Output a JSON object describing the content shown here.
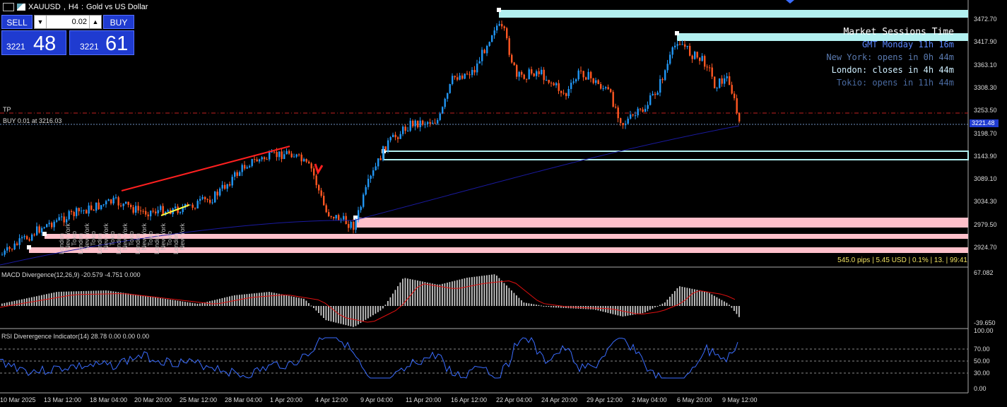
{
  "header": {
    "symbol": "XAUUSD",
    "timeframe": "H4",
    "description": "Gold vs US Dollar"
  },
  "trade_panel": {
    "sell_label": "SELL",
    "buy_label": "BUY",
    "lot": "0.02",
    "sell_small": "3221",
    "sell_big": "48",
    "buy_small": "3221",
    "buy_big": "61"
  },
  "sessions": {
    "title": "Market Sessions Time",
    "gmt": "GMT Monday 11h 16m",
    "newyork": "New York: opens in 0h 44m",
    "london": "London: closes in 4h 44m",
    "tokio": "Tokio: opens in 11h 44m",
    "colors": {
      "title": "#ffffff",
      "gmt": "#5a86ff",
      "newyork": "#5a7ab0",
      "london": "#cfefff",
      "tokio": "#4a6aa0"
    }
  },
  "labels": {
    "tp": "TP",
    "position": "BUY 0.01 at 3216.03",
    "current_price": "3221.48"
  },
  "bar_info": "545.0 pips | 5.45 USD | 0.1% | 13. | 99:41",
  "price_axis": [
    "3472.70",
    "3417.90",
    "3363.10",
    "3308.30",
    "3253.50",
    "3198.70",
    "3143.90",
    "3089.10",
    "3034.30",
    "2979.50",
    "2924.70"
  ],
  "macd": {
    "label": "MACD Divergence(12,26,9) -20.579 -4.751 0.000",
    "axis_top": "67.082",
    "axis_bottom": "-39.650"
  },
  "rsi": {
    "label": "RSI Diverergence Indicator(14) 28.78 0.00 0.00 0.00",
    "axis": [
      "100.00",
      "70.00",
      "50.00",
      "30.00",
      "0.00"
    ]
  },
  "time_axis": [
    "10 Mar 2025",
    "13 Mar 12:00",
    "18 Mar 04:00",
    "20 Mar 20:00",
    "25 Mar 12:00",
    "28 Mar 04:00",
    "1 Apr 20:00",
    "4 Apr 12:00",
    "9 Apr 04:00",
    "11 Apr 20:00",
    "16 Apr 12:00",
    "22 Apr 04:00",
    "24 Apr 20:00",
    "29 Apr 12:00",
    "2 May 04:00",
    "6 May 20:00",
    "9 May 12:00"
  ],
  "session_tags": [
    "London",
    "New York",
    "Tokio"
  ],
  "colors": {
    "bull": "#2196f3",
    "bear": "#ff5722",
    "zone_cyan": "#b2f0f0",
    "zone_pink": "#ffc0cb",
    "ma": "#1a1aa0",
    "macd_line": "#e01010",
    "rsi_line": "#3a6cff"
  }
}
